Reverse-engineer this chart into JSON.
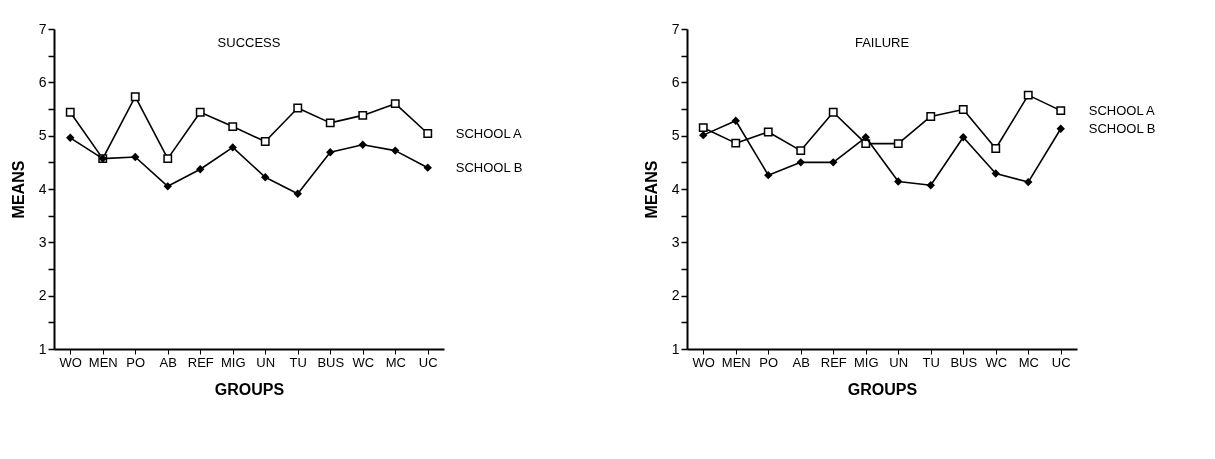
{
  "chart_data": [
    {
      "type": "line",
      "title": "SUCCESS",
      "xlabel": "GROUPS",
      "ylabel": "MEANS",
      "categories": [
        "WO",
        "MEN",
        "PO",
        "AB",
        "REF",
        "MIG",
        "UN",
        "TU",
        "BUS",
        "WC",
        "MC",
        "UC"
      ],
      "series": [
        {
          "name": "SCHOOL A",
          "color": "#000000",
          "marker": "square",
          "values": [
            5.44,
            4.57,
            5.73,
            4.57,
            5.44,
            5.17,
            4.89,
            5.52,
            5.24,
            5.38,
            5.6,
            5.04
          ]
        },
        {
          "name": "SCHOOL B",
          "color": "#000000",
          "marker": "diamond",
          "values": [
            4.96,
            4.57,
            4.6,
            4.05,
            4.37,
            4.78,
            4.22,
            3.91,
            4.69,
            4.83,
            4.72,
            4.4
          ]
        }
      ],
      "ylim": [
        1,
        7
      ],
      "yticks": [
        1,
        {
          "value": 1.5,
          "label": null
        },
        2,
        {
          "value": 2.5,
          "label": null
        },
        3,
        {
          "value": 3.5,
          "label": null
        },
        4,
        {
          "value": 4.5,
          "label": null
        },
        5,
        {
          "value": 5.5,
          "label": null
        },
        6,
        {
          "value": 6.5,
          "label": null
        },
        7
      ],
      "grid": false,
      "legend": false,
      "line_style": "solid"
    },
    {
      "type": "line",
      "title": "FAILURE",
      "xlabel": "GROUPS",
      "ylabel": "MEANS",
      "categories": [
        "WO",
        "MEN",
        "PO",
        "AB",
        "REF",
        "MIG",
        "UN",
        "TU",
        "BUS",
        "WC",
        "MC",
        "UC"
      ],
      "series": [
        {
          "name": "SCHOOL A",
          "color": "#000000",
          "marker": "square",
          "values": [
            5.15,
            4.86,
            5.07,
            4.72,
            5.44,
            4.85,
            4.85,
            5.36,
            5.49,
            4.76,
            5.76,
            5.47
          ]
        },
        {
          "name": "SCHOOL B",
          "color": "#000000",
          "marker": "diamond",
          "values": [
            5.01,
            5.28,
            4.26,
            4.5,
            4.5,
            4.97,
            4.14,
            4.07,
            4.97,
            4.29,
            4.13,
            5.13
          ]
        }
      ],
      "ylim": [
        1,
        7
      ],
      "yticks": [
        1,
        {
          "value": 1.5,
          "label": null
        },
        2,
        {
          "value": 2.5,
          "label": null
        },
        3,
        {
          "value": 3.5,
          "label": null
        },
        4,
        {
          "value": 4.5,
          "label": null
        },
        5,
        {
          "value": 5.5,
          "label": null
        },
        6,
        {
          "value": 6.5,
          "label": null
        },
        7
      ],
      "grid": false,
      "legend": false,
      "line_style": "solid"
    }
  ]
}
